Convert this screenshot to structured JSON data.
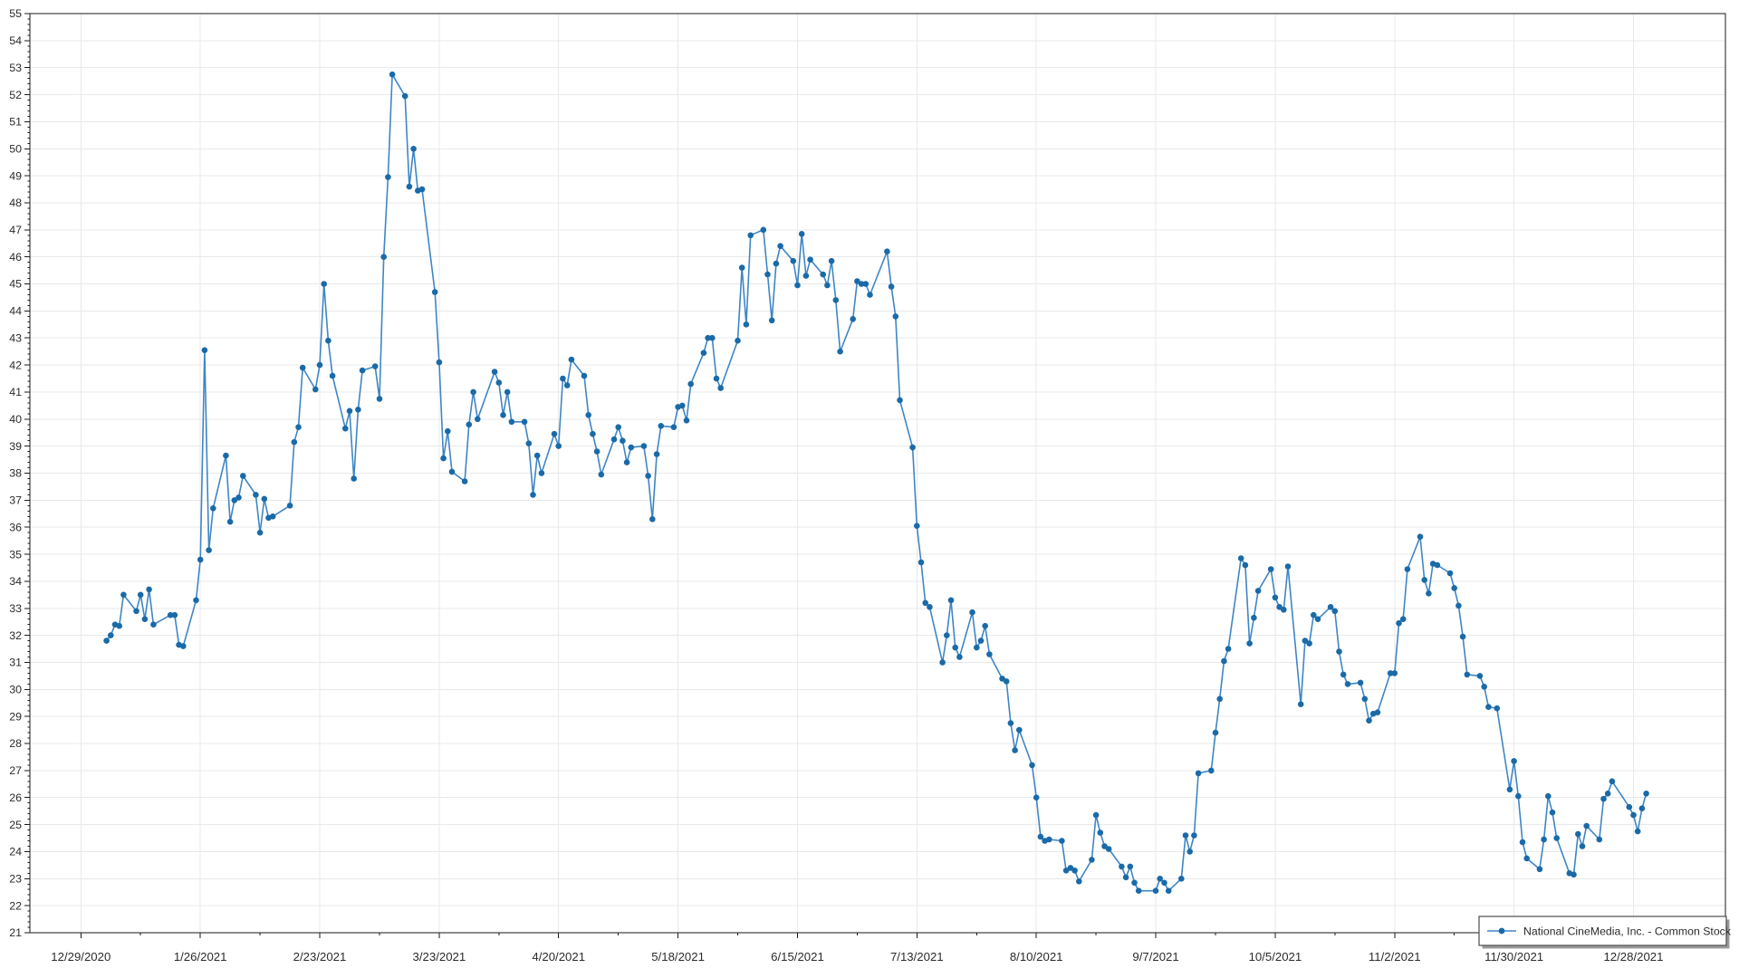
{
  "legend": {
    "label": "National CineMedia, Inc. - Common Stock"
  },
  "chart_data": {
    "type": "line",
    "title": "",
    "xlabel": "",
    "ylabel": "",
    "ylim": [
      21,
      55
    ],
    "y_tick_step": 1,
    "grid": true,
    "legend_position": "bottom-right",
    "x_axis_start_date": "2020-12-29",
    "x_tick_interval_days": 28,
    "x_tick_labels": [
      "12/29/2020",
      "1/26/2021",
      "2/23/2021",
      "3/23/2021",
      "4/20/2021",
      "5/18/2021",
      "6/15/2021",
      "7/13/2021",
      "8/10/2021",
      "9/7/2021",
      "10/5/2021",
      "11/2/2021",
      "11/30/2021",
      "12/28/2021"
    ],
    "colors": {
      "line": "#3e86c6",
      "marker": "#1a6aa8",
      "grid": "#e9e9e9",
      "axis": "#1a1a1a",
      "tick_label": "#2b2b2b",
      "legend_border": "#4d4d4d",
      "legend_shadow": "#9b9b9b",
      "background": "#ffffff"
    },
    "series": [
      {
        "name": "National CineMedia, Inc. - Common Stock",
        "dates": [
          "2021-01-04",
          "2021-01-05",
          "2021-01-06",
          "2021-01-07",
          "2021-01-08",
          "2021-01-11",
          "2021-01-12",
          "2021-01-13",
          "2021-01-14",
          "2021-01-15",
          "2021-01-19",
          "2021-01-20",
          "2021-01-21",
          "2021-01-22",
          "2021-01-25",
          "2021-01-26",
          "2021-01-27",
          "2021-01-28",
          "2021-01-29",
          "2021-02-01",
          "2021-02-02",
          "2021-02-03",
          "2021-02-04",
          "2021-02-05",
          "2021-02-08",
          "2021-02-09",
          "2021-02-10",
          "2021-02-11",
          "2021-02-12",
          "2021-02-16",
          "2021-02-17",
          "2021-02-18",
          "2021-02-19",
          "2021-02-22",
          "2021-02-23",
          "2021-02-24",
          "2021-02-25",
          "2021-02-26",
          "2021-03-01",
          "2021-03-02",
          "2021-03-03",
          "2021-03-04",
          "2021-03-05",
          "2021-03-08",
          "2021-03-09",
          "2021-03-10",
          "2021-03-11",
          "2021-03-12",
          "2021-03-15",
          "2021-03-16",
          "2021-03-17",
          "2021-03-18",
          "2021-03-19",
          "2021-03-22",
          "2021-03-23",
          "2021-03-24",
          "2021-03-25",
          "2021-03-26",
          "2021-03-29",
          "2021-03-30",
          "2021-03-31",
          "2021-04-01",
          "2021-04-05",
          "2021-04-06",
          "2021-04-07",
          "2021-04-08",
          "2021-04-09",
          "2021-04-12",
          "2021-04-13",
          "2021-04-14",
          "2021-04-15",
          "2021-04-16",
          "2021-04-19",
          "2021-04-20",
          "2021-04-21",
          "2021-04-22",
          "2021-04-23",
          "2021-04-26",
          "2021-04-27",
          "2021-04-28",
          "2021-04-29",
          "2021-04-30",
          "2021-05-03",
          "2021-05-04",
          "2021-05-05",
          "2021-05-06",
          "2021-05-07",
          "2021-05-10",
          "2021-05-11",
          "2021-05-12",
          "2021-05-13",
          "2021-05-14",
          "2021-05-17",
          "2021-05-18",
          "2021-05-19",
          "2021-05-20",
          "2021-05-21",
          "2021-05-24",
          "2021-05-25",
          "2021-05-26",
          "2021-05-27",
          "2021-05-28",
          "2021-06-01",
          "2021-06-02",
          "2021-06-03",
          "2021-06-04",
          "2021-06-07",
          "2021-06-08",
          "2021-06-09",
          "2021-06-10",
          "2021-06-11",
          "2021-06-14",
          "2021-06-15",
          "2021-06-16",
          "2021-06-17",
          "2021-06-18",
          "2021-06-21",
          "2021-06-22",
          "2021-06-23",
          "2021-06-24",
          "2021-06-25",
          "2021-06-28",
          "2021-06-29",
          "2021-06-30",
          "2021-07-01",
          "2021-07-02",
          "2021-07-06",
          "2021-07-07",
          "2021-07-08",
          "2021-07-09",
          "2021-07-12",
          "2021-07-13",
          "2021-07-14",
          "2021-07-15",
          "2021-07-16",
          "2021-07-19",
          "2021-07-20",
          "2021-07-21",
          "2021-07-22",
          "2021-07-23",
          "2021-07-26",
          "2021-07-27",
          "2021-07-28",
          "2021-07-29",
          "2021-07-30",
          "2021-08-02",
          "2021-08-03",
          "2021-08-04",
          "2021-08-05",
          "2021-08-06",
          "2021-08-09",
          "2021-08-10",
          "2021-08-11",
          "2021-08-12",
          "2021-08-13",
          "2021-08-16",
          "2021-08-17",
          "2021-08-18",
          "2021-08-19",
          "2021-08-20",
          "2021-08-23",
          "2021-08-24",
          "2021-08-25",
          "2021-08-26",
          "2021-08-27",
          "2021-08-30",
          "2021-08-31",
          "2021-09-01",
          "2021-09-02",
          "2021-09-03",
          "2021-09-07",
          "2021-09-08",
          "2021-09-09",
          "2021-09-10",
          "2021-09-13",
          "2021-09-14",
          "2021-09-15",
          "2021-09-16",
          "2021-09-17",
          "2021-09-20",
          "2021-09-21",
          "2021-09-22",
          "2021-09-23",
          "2021-09-24",
          "2021-09-27",
          "2021-09-28",
          "2021-09-29",
          "2021-09-30",
          "2021-10-01",
          "2021-10-04",
          "2021-10-05",
          "2021-10-06",
          "2021-10-07",
          "2021-10-08",
          "2021-10-11",
          "2021-10-12",
          "2021-10-13",
          "2021-10-14",
          "2021-10-15",
          "2021-10-18",
          "2021-10-19",
          "2021-10-20",
          "2021-10-21",
          "2021-10-22",
          "2021-10-25",
          "2021-10-26",
          "2021-10-27",
          "2021-10-28",
          "2021-10-29",
          "2021-11-01",
          "2021-11-02",
          "2021-11-03",
          "2021-11-04",
          "2021-11-05",
          "2021-11-08",
          "2021-11-09",
          "2021-11-10",
          "2021-11-11",
          "2021-11-12",
          "2021-11-15",
          "2021-11-16",
          "2021-11-17",
          "2021-11-18",
          "2021-11-19",
          "2021-11-22",
          "2021-11-23",
          "2021-11-24",
          "2021-11-26",
          "2021-11-29",
          "2021-11-30",
          "2021-12-01",
          "2021-12-02",
          "2021-12-03",
          "2021-12-06",
          "2021-12-07",
          "2021-12-08",
          "2021-12-09",
          "2021-12-10",
          "2021-12-13",
          "2021-12-14",
          "2021-12-15",
          "2021-12-16",
          "2021-12-17",
          "2021-12-20",
          "2021-12-21",
          "2021-12-22",
          "2021-12-23",
          "2021-12-27",
          "2021-12-28",
          "2021-12-29",
          "2021-12-30",
          "2021-12-31"
        ],
        "values": [
          31.8,
          32.0,
          32.4,
          32.35,
          33.5,
          32.9,
          33.5,
          32.6,
          33.7,
          32.4,
          32.75,
          32.75,
          31.65,
          31.6,
          33.3,
          34.8,
          42.55,
          35.15,
          36.7,
          38.65,
          36.2,
          37.0,
          37.1,
          37.9,
          37.2,
          35.8,
          37.05,
          36.35,
          36.4,
          36.8,
          39.15,
          39.7,
          41.9,
          41.1,
          42.0,
          45.0,
          42.9,
          41.6,
          39.65,
          40.3,
          37.8,
          40.35,
          41.8,
          41.95,
          40.75,
          46.0,
          48.95,
          52.75,
          51.95,
          48.6,
          50.0,
          48.45,
          48.5,
          44.7,
          42.1,
          38.55,
          39.55,
          38.05,
          37.7,
          39.8,
          41.0,
          40.0,
          41.75,
          41.35,
          40.15,
          41.0,
          39.9,
          39.9,
          39.1,
          37.2,
          38.65,
          38.0,
          39.45,
          39.0,
          41.5,
          41.25,
          42.2,
          41.6,
          40.15,
          39.45,
          38.8,
          37.95,
          39.25,
          39.7,
          39.2,
          38.4,
          38.95,
          39.0,
          37.9,
          36.3,
          38.7,
          39.75,
          39.7,
          40.45,
          40.5,
          39.95,
          41.3,
          42.45,
          43.0,
          43.0,
          41.5,
          41.15,
          42.9,
          45.6,
          43.5,
          46.8,
          47.0,
          45.35,
          43.65,
          45.75,
          46.4,
          45.85,
          44.95,
          46.85,
          45.3,
          45.9,
          45.35,
          44.95,
          45.85,
          44.4,
          42.5,
          43.7,
          45.1,
          45.0,
          45.0,
          44.6,
          46.2,
          44.9,
          43.8,
          40.7,
          38.95,
          36.05,
          34.7,
          33.2,
          33.05,
          31.0,
          32.0,
          33.3,
          31.55,
          31.2,
          32.85,
          31.55,
          31.8,
          32.35,
          31.3,
          30.4,
          30.3,
          28.75,
          27.75,
          28.5,
          27.2,
          26.0,
          24.55,
          24.4,
          24.45,
          24.4,
          23.3,
          23.4,
          23.3,
          22.9,
          23.7,
          25.35,
          24.7,
          24.2,
          24.1,
          23.45,
          23.05,
          23.45,
          22.85,
          22.55,
          22.55,
          23.0,
          22.85,
          22.55,
          23.0,
          24.6,
          24.0,
          24.6,
          26.9,
          27.0,
          28.4,
          29.65,
          31.05,
          31.5,
          34.85,
          34.6,
          31.7,
          32.65,
          33.65,
          34.45,
          33.4,
          33.05,
          32.95,
          34.55,
          29.45,
          31.8,
          31.7,
          32.75,
          32.6,
          33.05,
          32.9,
          31.4,
          30.55,
          30.2,
          30.25,
          29.65,
          28.85,
          29.1,
          29.15,
          30.6,
          30.6,
          32.45,
          32.6,
          34.45,
          35.65,
          34.05,
          33.55,
          34.65,
          34.6,
          34.3,
          33.75,
          33.1,
          31.95,
          30.55,
          30.5,
          30.1,
          29.35,
          29.3,
          26.3,
          27.35,
          26.05,
          24.35,
          23.75,
          23.35,
          24.45,
          26.05,
          25.45,
          24.5,
          23.2,
          23.15,
          24.65,
          24.2,
          24.95,
          24.45,
          25.95,
          26.15,
          26.6,
          25.65,
          25.35,
          24.75,
          25.6,
          26.15
        ]
      }
    ]
  }
}
